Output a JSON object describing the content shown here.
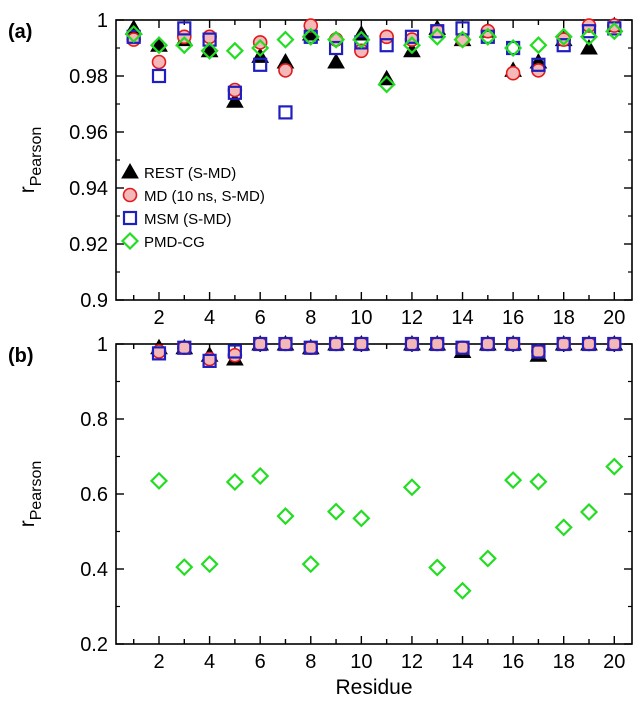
{
  "colors": {
    "REST": "#000000",
    "MD_edge": "#e31a1c",
    "MD_fill": "#f4b8b8",
    "MSM": "#1f1fbf",
    "PMD": "#22dd22"
  },
  "chart_data": [
    {
      "type": "scatter",
      "panel_label": "(a)",
      "ylabel_main": "r",
      "ylabel_sub": "Pearson",
      "xlabel": "",
      "xlim": [
        0.3,
        20.7
      ],
      "ylim": [
        0.9,
        1.0
      ],
      "xticks": [
        2,
        4,
        6,
        8,
        10,
        12,
        14,
        16,
        18,
        20
      ],
      "yticks": [
        0.9,
        0.92,
        0.94,
        0.96,
        0.98,
        1.0
      ],
      "ytick_labels": [
        "0.9",
        "0.92",
        "0.94",
        "0.96",
        "0.98",
        "1"
      ],
      "legend_position": "bottom-left",
      "series": [
        {
          "name": "REST (S-MD)",
          "marker": "triangle",
          "x": [
            1,
            2,
            3,
            4,
            5,
            6,
            7,
            8,
            9,
            10,
            11,
            12,
            13,
            14,
            15,
            16,
            17,
            18,
            19,
            20
          ],
          "y": [
            0.997,
            0.991,
            0.993,
            0.989,
            0.971,
            0.987,
            0.985,
            0.995,
            0.985,
            0.995,
            0.979,
            0.989,
            0.997,
            0.993,
            0.996,
            0.982,
            0.985,
            0.993,
            0.99,
            0.998
          ]
        },
        {
          "name": "MD (10 ns, S-MD)",
          "marker": "circle",
          "x": [
            1,
            2,
            3,
            4,
            5,
            6,
            7,
            8,
            9,
            10,
            11,
            12,
            13,
            14,
            15,
            16,
            17,
            18,
            19,
            20
          ],
          "y": [
            0.993,
            0.985,
            0.994,
            0.994,
            0.975,
            0.992,
            0.982,
            0.998,
            0.993,
            0.989,
            0.994,
            0.993,
            0.996,
            0.993,
            0.996,
            0.981,
            0.982,
            0.993,
            0.998,
            0.998
          ]
        },
        {
          "name": "MSM (S-MD)",
          "marker": "square",
          "x": [
            1,
            2,
            3,
            4,
            5,
            6,
            7,
            8,
            9,
            10,
            11,
            12,
            13,
            14,
            15,
            16,
            17,
            18,
            19,
            20
          ],
          "y": [
            0.994,
            0.98,
            0.997,
            0.993,
            0.974,
            0.984,
            0.967,
            0.994,
            0.99,
            0.992,
            0.991,
            0.994,
            0.996,
            0.997,
            0.994,
            0.99,
            0.984,
            0.991,
            0.996,
            0.997
          ]
        },
        {
          "name": "PMD-CG",
          "marker": "diamond",
          "x": [
            1,
            2,
            3,
            4,
            5,
            6,
            7,
            8,
            9,
            10,
            11,
            12,
            13,
            14,
            15,
            16,
            17,
            18,
            19,
            20
          ],
          "y": [
            0.995,
            0.991,
            0.991,
            0.989,
            0.989,
            0.99,
            0.993,
            0.994,
            0.993,
            0.993,
            0.977,
            0.991,
            0.994,
            0.993,
            0.994,
            0.99,
            0.991,
            0.994,
            0.994,
            0.996
          ]
        }
      ]
    },
    {
      "type": "scatter",
      "panel_label": "(b)",
      "ylabel_main": "r",
      "ylabel_sub": "Pearson",
      "xlabel": "Residue",
      "xlim": [
        0.3,
        20.7
      ],
      "ylim": [
        0.2,
        1.0
      ],
      "xticks": [
        2,
        4,
        6,
        8,
        10,
        12,
        14,
        16,
        18,
        20
      ],
      "yticks": [
        0.2,
        0.4,
        0.6,
        0.8,
        1.0
      ],
      "ytick_labels": [
        "0.2",
        "0.4",
        "0.6",
        "0.8",
        "1"
      ],
      "series": [
        {
          "name": "REST (S-MD)",
          "marker": "triangle",
          "x": [
            2,
            3,
            4,
            5,
            6,
            7,
            8,
            9,
            10,
            12,
            13,
            14,
            15,
            16,
            17,
            18,
            19,
            20
          ],
          "y": [
            0.99,
            0.99,
            0.97,
            0.96,
            1.0,
            1.0,
            0.99,
            1.0,
            1.0,
            1.0,
            1.0,
            0.98,
            1.0,
            1.0,
            0.97,
            1.0,
            1.0,
            1.0
          ]
        },
        {
          "name": "MD (10 ns, S-MD)",
          "marker": "circle",
          "x": [
            2,
            3,
            4,
            5,
            6,
            7,
            8,
            9,
            10,
            12,
            13,
            14,
            15,
            16,
            17,
            18,
            19,
            20
          ],
          "y": [
            0.98,
            0.99,
            0.96,
            0.97,
            1.0,
            1.0,
            0.99,
            1.0,
            1.0,
            1.0,
            1.0,
            0.99,
            1.0,
            1.0,
            0.98,
            1.0,
            1.0,
            1.0
          ]
        },
        {
          "name": "MSM (S-MD)",
          "marker": "square",
          "x": [
            2,
            3,
            4,
            5,
            6,
            7,
            8,
            9,
            10,
            12,
            13,
            14,
            15,
            16,
            17,
            18,
            19,
            20
          ],
          "y": [
            0.975,
            0.99,
            0.955,
            0.98,
            1.0,
            1.0,
            0.99,
            1.0,
            1.0,
            1.0,
            1.0,
            0.99,
            1.0,
            1.0,
            0.98,
            1.0,
            1.0,
            1.0
          ]
        },
        {
          "name": "PMD-CG",
          "marker": "diamond",
          "x": [
            2,
            3,
            4,
            5,
            6,
            7,
            8,
            9,
            10,
            12,
            13,
            14,
            15,
            16,
            17,
            18,
            19,
            20
          ],
          "y": [
            0.635,
            0.405,
            0.413,
            0.632,
            0.648,
            0.541,
            0.413,
            0.553,
            0.535,
            0.618,
            0.404,
            0.342,
            0.428,
            0.637,
            0.633,
            0.511,
            0.552,
            0.673
          ]
        }
      ]
    }
  ]
}
